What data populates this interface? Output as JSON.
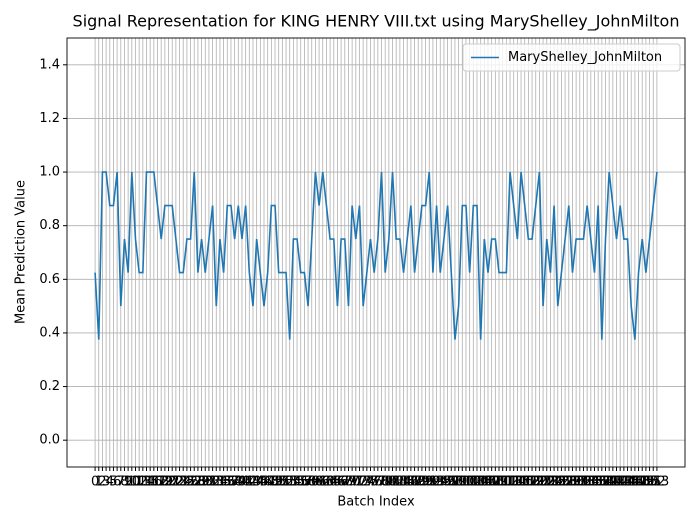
{
  "chart_data": {
    "type": "line",
    "title": "Signal Representation for KING HENRY VIII.txt using MaryShelley_JohnMilton",
    "x_label": "Batch Index",
    "y_label": "Mean Prediction Value",
    "x": [
      0,
      1,
      2,
      3,
      4,
      5,
      6,
      7,
      8,
      9,
      10,
      11,
      12,
      13,
      14,
      15,
      16,
      17,
      18,
      19,
      20,
      21,
      22,
      23,
      24,
      25,
      26,
      27,
      28,
      29,
      30,
      31,
      32,
      33,
      34,
      35,
      36,
      37,
      38,
      39,
      40,
      41,
      42,
      43,
      44,
      45,
      46,
      47,
      48,
      49,
      50,
      51,
      52,
      53,
      54,
      55,
      56,
      57,
      58,
      59,
      60,
      61,
      62,
      63,
      64,
      65,
      66,
      67,
      68,
      69,
      70,
      71,
      72,
      73,
      74,
      75,
      76,
      77,
      78,
      79,
      80,
      81,
      82,
      83,
      84,
      85,
      86,
      87,
      88,
      89,
      90,
      91,
      92,
      93,
      94,
      95,
      96,
      97,
      98,
      99,
      100,
      101,
      102,
      103,
      104,
      105,
      106,
      107,
      108,
      109,
      110,
      111,
      112,
      113,
      114,
      115,
      116,
      117,
      118,
      119,
      120,
      121,
      122,
      123,
      124,
      125,
      126,
      127,
      128,
      129,
      130,
      131,
      132,
      133,
      134,
      135,
      136,
      137,
      138,
      139,
      140,
      141,
      142,
      143,
      144,
      145,
      146,
      147,
      148,
      149,
      150,
      151,
      152,
      153
    ],
    "series": [
      {
        "name": "MaryShelley_JohnMilton",
        "color": "#1f77b4",
        "values": [
          0.625,
          0.375,
          1.0,
          1.0,
          0.875,
          0.875,
          1.0,
          0.5,
          0.75,
          0.625,
          1.0,
          0.75,
          0.625,
          0.625,
          1.0,
          1.0,
          1.0,
          0.875,
          0.75,
          0.875,
          0.875,
          0.875,
          0.75,
          0.625,
          0.625,
          0.75,
          0.75,
          1.0,
          0.625,
          0.75,
          0.625,
          0.75,
          0.875,
          0.5,
          0.75,
          0.625,
          0.875,
          0.875,
          0.75,
          0.875,
          0.75,
          0.875,
          0.625,
          0.5,
          0.75,
          0.625,
          0.5,
          0.625,
          0.875,
          0.875,
          0.625,
          0.625,
          0.625,
          0.375,
          0.75,
          0.75,
          0.625,
          0.625,
          0.5,
          0.75,
          1.0,
          0.875,
          1.0,
          0.875,
          0.75,
          0.75,
          0.5,
          0.75,
          0.75,
          0.5,
          0.875,
          0.75,
          0.875,
          0.5,
          0.625,
          0.75,
          0.625,
          0.75,
          1.0,
          0.625,
          0.75,
          1.0,
          0.75,
          0.75,
          0.625,
          0.75,
          0.875,
          0.625,
          0.75,
          0.875,
          0.875,
          1.0,
          0.625,
          0.875,
          0.625,
          0.75,
          0.875,
          0.625,
          0.375,
          0.5,
          0.875,
          0.875,
          0.625,
          0.875,
          0.875,
          0.375,
          0.75,
          0.625,
          0.75,
          0.75,
          0.625,
          0.625,
          0.625,
          1.0,
          0.875,
          0.75,
          1.0,
          0.875,
          0.75,
          0.75,
          0.875,
          1.0,
          0.5,
          0.75,
          0.625,
          0.875,
          0.5,
          0.625,
          0.75,
          0.875,
          0.625,
          0.75,
          0.75,
          0.75,
          0.875,
          0.75,
          0.625,
          0.875,
          0.375,
          0.75,
          1.0,
          0.875,
          0.75,
          0.875,
          0.75,
          0.75,
          0.5,
          0.375,
          0.625,
          0.75,
          0.625,
          0.75,
          0.875,
          1.0
        ]
      }
    ],
    "xlim": [
      -7.65,
      160.65
    ],
    "ylim": [
      -0.1,
      1.5
    ],
    "xticks": [
      0,
      1,
      2,
      3,
      4,
      5,
      6,
      7,
      8,
      9,
      10,
      11,
      12,
      13,
      14,
      15,
      16,
      17,
      18,
      19,
      20,
      21,
      22,
      23,
      24,
      25,
      26,
      27,
      28,
      29,
      30,
      31,
      32,
      33,
      34,
      35,
      36,
      37,
      38,
      39,
      40,
      41,
      42,
      43,
      44,
      45,
      46,
      47,
      48,
      49,
      50,
      51,
      52,
      53,
      54,
      55,
      56,
      57,
      58,
      59,
      60,
      61,
      62,
      63,
      64,
      65,
      66,
      67,
      68,
      69,
      70,
      71,
      72,
      73,
      74,
      75,
      76,
      77,
      78,
      79,
      80,
      81,
      82,
      83,
      84,
      85,
      86,
      87,
      88,
      89,
      90,
      91,
      92,
      93,
      94,
      95,
      96,
      97,
      98,
      99,
      100,
      101,
      102,
      103,
      104,
      105,
      106,
      107,
      108,
      109,
      110,
      111,
      112,
      113,
      114,
      115,
      116,
      117,
      118,
      119,
      120,
      121,
      122,
      123,
      124,
      125,
      126,
      127,
      128,
      129,
      130,
      131,
      132,
      133,
      134,
      135,
      136,
      137,
      138,
      139,
      140,
      141,
      142,
      143,
      144,
      145,
      146,
      147,
      148,
      149,
      150,
      151,
      152,
      153
    ],
    "yticks": [
      {
        "value": 0,
        "label": "0.0"
      },
      0.2,
      0.4,
      0.6,
      0.8,
      {
        "value": 1,
        "label": "1.0"
      },
      1.2,
      1.4
    ],
    "grid": true,
    "legend": "upper right"
  }
}
